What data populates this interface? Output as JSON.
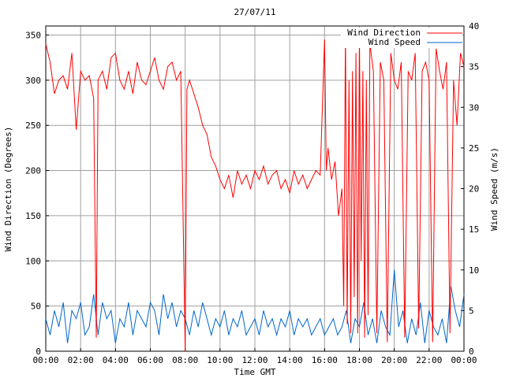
{
  "chart_data": {
    "type": "line",
    "title": "27/07/11",
    "xlabel": "Time GMT",
    "ylabel_left": "Wind Direction (Degrees)",
    "ylabel_right": "Wind Speed (m/s)",
    "xlim_hours": [
      0,
      24
    ],
    "ylim_left": [
      0,
      360
    ],
    "ylim_right": [
      0,
      40
    ],
    "x_tick_labels": [
      "00:00",
      "02:00",
      "04:00",
      "06:00",
      "08:00",
      "10:00",
      "12:00",
      "14:00",
      "16:00",
      "18:00",
      "20:00",
      "22:00",
      "00:00"
    ],
    "y_left_ticks": [
      0,
      50,
      100,
      150,
      200,
      250,
      300,
      350
    ],
    "y_right_ticks": [
      0,
      5,
      10,
      15,
      20,
      25,
      30,
      35,
      40
    ],
    "grid": true,
    "legend_position": "top-right",
    "series": [
      {
        "name": "Wind Direction",
        "axis": "left",
        "color": "#ff0000",
        "x": [
          0,
          0.25,
          0.5,
          0.75,
          1,
          1.25,
          1.5,
          1.75,
          2,
          2.25,
          2.5,
          2.75,
          2.9,
          3,
          3.25,
          3.5,
          3.75,
          4,
          4.25,
          4.5,
          4.75,
          5,
          5.25,
          5.5,
          5.75,
          6,
          6.25,
          6.5,
          6.75,
          7,
          7.25,
          7.5,
          7.75,
          8,
          8.1,
          8.25,
          8.5,
          8.75,
          9,
          9.25,
          9.5,
          9.75,
          10,
          10.25,
          10.5,
          10.75,
          11,
          11.25,
          11.5,
          11.75,
          12,
          12.25,
          12.5,
          12.75,
          13,
          13.25,
          13.5,
          13.75,
          14,
          14.25,
          14.5,
          14.75,
          15,
          15.25,
          15.5,
          15.75,
          16,
          16.1,
          16.2,
          16.4,
          16.6,
          16.8,
          17,
          17.1,
          17.2,
          17.3,
          17.4,
          17.5,
          17.6,
          17.7,
          17.8,
          17.9,
          18,
          18.1,
          18.2,
          18.3,
          18.4,
          18.5,
          18.6,
          18.8,
          19,
          19.2,
          19.4,
          19.6,
          19.8,
          20,
          20.2,
          20.4,
          20.6,
          20.8,
          21,
          21.2,
          21.4,
          21.6,
          21.8,
          22,
          22.2,
          22.4,
          22.6,
          22.8,
          23,
          23.2,
          23.4,
          23.6,
          23.8,
          24
        ],
        "values": [
          340,
          320,
          285,
          300,
          305,
          290,
          330,
          245,
          310,
          300,
          305,
          280,
          15,
          300,
          310,
          290,
          325,
          330,
          300,
          290,
          310,
          285,
          320,
          300,
          295,
          310,
          325,
          300,
          290,
          315,
          320,
          300,
          310,
          0,
          290,
          300,
          285,
          270,
          250,
          240,
          215,
          205,
          190,
          180,
          195,
          170,
          200,
          185,
          195,
          180,
          200,
          190,
          205,
          185,
          195,
          200,
          180,
          190,
          175,
          200,
          185,
          195,
          180,
          190,
          200,
          195,
          345,
          200,
          225,
          190,
          210,
          150,
          180,
          50,
          355,
          30,
          300,
          20,
          310,
          60,
          330,
          20,
          350,
          100,
          310,
          15,
          300,
          40,
          340,
          310,
          20,
          320,
          300,
          10,
          330,
          300,
          290,
          320,
          15,
          310,
          300,
          330,
          25,
          310,
          320,
          300,
          10,
          335,
          310,
          290,
          320,
          20,
          300,
          250,
          330,
          315
        ]
      },
      {
        "name": "Wind Speed",
        "axis": "right",
        "color": "#0066cc",
        "x": [
          0,
          0.25,
          0.5,
          0.75,
          1,
          1.25,
          1.5,
          1.75,
          2,
          2.25,
          2.5,
          2.75,
          3,
          3.25,
          3.5,
          3.75,
          4,
          4.25,
          4.5,
          4.75,
          5,
          5.25,
          5.5,
          5.75,
          6,
          6.25,
          6.5,
          6.75,
          7,
          7.25,
          7.5,
          7.75,
          8,
          8.25,
          8.5,
          8.75,
          9,
          9.25,
          9.5,
          9.75,
          10,
          10.25,
          10.5,
          10.75,
          11,
          11.25,
          11.5,
          11.75,
          12,
          12.25,
          12.5,
          12.75,
          13,
          13.25,
          13.5,
          13.75,
          14,
          14.25,
          14.5,
          14.75,
          15,
          15.25,
          15.5,
          15.75,
          16,
          16.25,
          16.5,
          16.75,
          17,
          17.25,
          17.5,
          17.75,
          18,
          18.25,
          18.5,
          18.75,
          19,
          19.25,
          19.5,
          19.75,
          20,
          20.25,
          20.5,
          20.75,
          21,
          21.25,
          21.5,
          21.75,
          22,
          22.25,
          22.5,
          22.75,
          23,
          23.25,
          23.5,
          23.75,
          24
        ],
        "values": [
          4,
          2,
          5,
          3,
          6,
          1,
          5,
          4,
          6,
          2,
          3,
          7,
          2,
          6,
          4,
          5,
          1,
          4,
          3,
          6,
          2,
          5,
          4,
          3,
          6,
          5,
          2,
          7,
          4,
          6,
          3,
          5,
          4,
          2,
          5,
          3,
          6,
          4,
          2,
          4,
          3,
          5,
          2,
          4,
          3,
          5,
          2,
          3,
          4,
          2,
          5,
          3,
          4,
          2,
          4,
          3,
          5,
          2,
          4,
          3,
          4,
          2,
          3,
          4,
          2,
          3,
          4,
          2,
          3,
          5,
          1,
          4,
          3,
          6,
          2,
          4,
          1,
          5,
          3,
          2,
          10,
          3,
          5,
          1,
          4,
          2,
          6,
          1,
          5,
          3,
          2,
          4,
          1,
          8,
          5,
          3,
          7
        ]
      }
    ]
  }
}
